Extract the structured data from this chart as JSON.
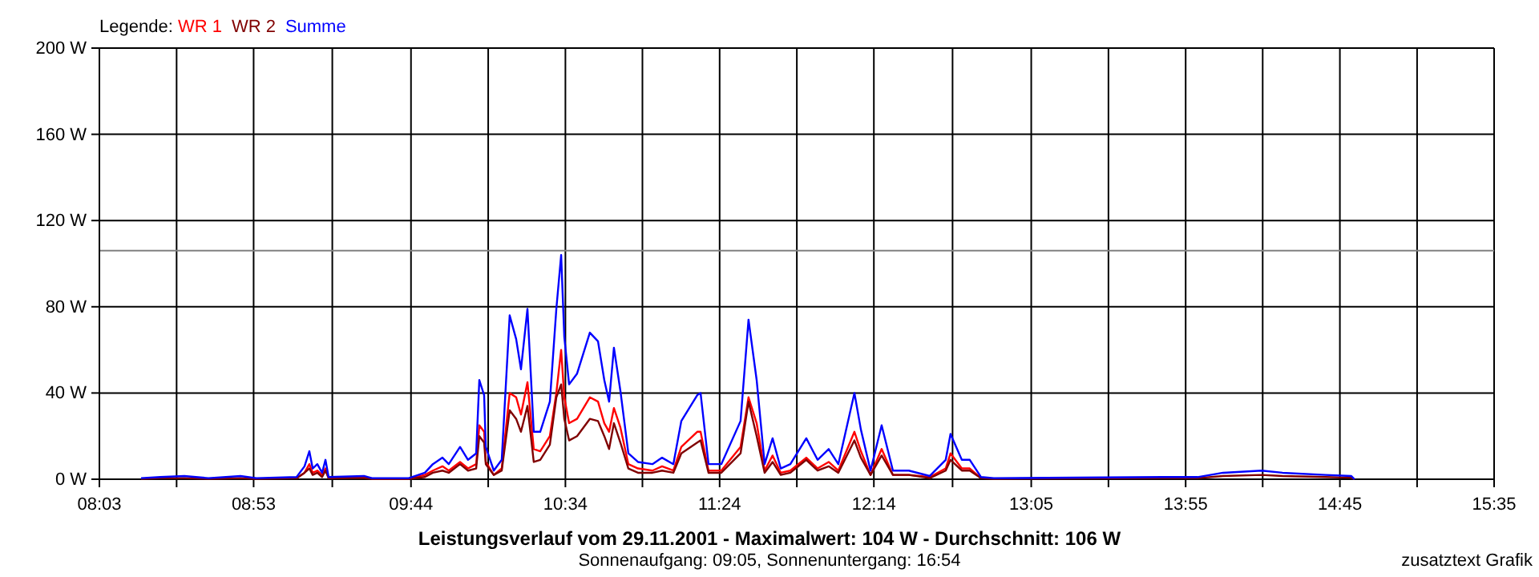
{
  "chart_data": {
    "type": "line",
    "title": "Leistungsverlauf vom 29.11.2001 - Maximalwert: 104 W - Durchschnitt: 106 W",
    "subtitle": "Sonnenaufgang: 09:05, Sonnenuntergang: 16:54",
    "legend_title": "Legende:",
    "legend": "top left",
    "grid": true,
    "marker": "none",
    "line_style": "solid",
    "annotations": [
      "zusatztext Grafik"
    ],
    "xlim": [
      8.05,
      15.583
    ],
    "ylim": [
      0,
      200
    ],
    "xticks": [
      {
        "value": 8.05,
        "label": "08:03"
      },
      {
        "value": 8.467,
        "label": null
      },
      {
        "value": 8.883,
        "label": "08:53"
      },
      {
        "value": 9.308,
        "label": null
      },
      {
        "value": 9.733,
        "label": "09:44"
      },
      {
        "value": 10.15,
        "label": null
      },
      {
        "value": 10.567,
        "label": "10:34"
      },
      {
        "value": 10.983,
        "label": null
      },
      {
        "value": 11.4,
        "label": "11:24"
      },
      {
        "value": 11.817,
        "label": null
      },
      {
        "value": 12.233,
        "label": "12:14"
      },
      {
        "value": 12.658,
        "label": null
      },
      {
        "value": 13.083,
        "label": "13:05"
      },
      {
        "value": 13.5,
        "label": null
      },
      {
        "value": 13.917,
        "label": "13:55"
      },
      {
        "value": 14.333,
        "label": null
      },
      {
        "value": 14.75,
        "label": "14:45"
      },
      {
        "value": 15.167,
        "label": null
      },
      {
        "value": 15.583,
        "label": "15:35"
      }
    ],
    "yticks": [
      {
        "value": 0,
        "label": "0 W"
      },
      {
        "value": 40,
        "label": "40 W"
      },
      {
        "value": 80,
        "label": "80 W"
      },
      {
        "value": 120,
        "label": "120 W"
      },
      {
        "value": 160,
        "label": "160 W"
      },
      {
        "value": 200,
        "label": "200 W"
      }
    ],
    "ref_lines": [
      {
        "axis": "y",
        "value": 106,
        "color": "#808080"
      }
    ],
    "x": [
      8.275,
      8.379,
      8.509,
      8.639,
      8.812,
      8.898,
      9.115,
      9.158,
      9.184,
      9.202,
      9.227,
      9.253,
      9.271,
      9.288,
      9.479,
      9.522,
      9.721,
      9.808,
      9.851,
      9.903,
      9.937,
      9.998,
      10.041,
      10.085,
      10.102,
      10.128,
      10.137,
      10.18,
      10.223,
      10.266,
      10.301,
      10.327,
      10.362,
      10.396,
      10.431,
      10.483,
      10.518,
      10.544,
      10.561,
      10.587,
      10.63,
      10.699,
      10.743,
      10.777,
      10.803,
      10.829,
      10.864,
      10.907,
      10.959,
      11.037,
      11.089,
      11.15,
      11.193,
      11.279,
      11.297,
      11.34,
      11.409,
      11.513,
      11.556,
      11.6,
      11.643,
      11.686,
      11.73,
      11.782,
      11.868,
      11.929,
      11.989,
      12.041,
      12.128,
      12.163,
      12.215,
      12.275,
      12.336,
      12.422,
      12.535,
      12.621,
      12.647,
      12.708,
      12.751,
      12.812,
      12.881,
      13.79,
      13.981,
      14.119,
      14.327,
      14.44,
      14.673,
      14.812,
      14.829
    ],
    "series": [
      {
        "name": "WR 1",
        "color": "#ff0000",
        "values": [
          null,
          null,
          null,
          null,
          null,
          null,
          0.5,
          3,
          7,
          3,
          4,
          2,
          5,
          0.5,
          1,
          0.3,
          0.3,
          2,
          4,
          6,
          4,
          8,
          5,
          7,
          25,
          22,
          8,
          2,
          5,
          40,
          38,
          30,
          45,
          14,
          13,
          20,
          40,
          60,
          38,
          26,
          28,
          38,
          36,
          26,
          22,
          33,
          24,
          7,
          5,
          4,
          6,
          4,
          15,
          22,
          22,
          4,
          4,
          15,
          38,
          26,
          4,
          11,
          3,
          4,
          10,
          5,
          8,
          4,
          22,
          13,
          2,
          14,
          2,
          2,
          1,
          5,
          12,
          5,
          5,
          0.5,
          null,
          null,
          null,
          null,
          null,
          null,
          null,
          null,
          null
        ]
      },
      {
        "name": "WR 2",
        "color": "#800000",
        "values": [
          0.2,
          0.5,
          0.5,
          0.2,
          0.5,
          0.2,
          0.5,
          3,
          5,
          2,
          3,
          1,
          4,
          0.5,
          0.5,
          0.2,
          0.2,
          1,
          3,
          4,
          3,
          7,
          4,
          5,
          20,
          17,
          7,
          2,
          4,
          32,
          28,
          22,
          34,
          8,
          9,
          16,
          38,
          44,
          28,
          18,
          20,
          28,
          27,
          20,
          14,
          26,
          17,
          5,
          3,
          3,
          4,
          3,
          12,
          17,
          18,
          3,
          3,
          12,
          36,
          20,
          3,
          8,
          2,
          3,
          9,
          4,
          6,
          3,
          18,
          10,
          2,
          11,
          2,
          2,
          0.5,
          4,
          9,
          4,
          4,
          0.5,
          0.2,
          0.5,
          0.5,
          1.5,
          2,
          1.5,
          1,
          0.7,
          0
        ]
      },
      {
        "name": "Summe",
        "color": "#0000ff",
        "values": [
          0.5,
          1,
          1.5,
          0.5,
          1.5,
          0.5,
          1,
          6,
          13,
          5,
          7,
          3,
          9,
          1,
          1.5,
          0.5,
          0.5,
          3,
          7,
          10,
          7,
          15,
          9,
          12,
          46,
          39,
          15,
          4,
          9,
          76,
          65,
          51,
          79,
          22,
          22,
          36,
          79,
          104,
          66,
          44,
          49,
          68,
          64,
          46,
          36,
          61,
          41,
          12,
          8,
          7,
          10,
          7,
          27,
          39,
          40,
          7,
          7,
          27,
          74,
          46,
          7,
          19,
          5,
          7,
          19,
          9,
          14,
          7,
          40,
          23,
          4,
          25,
          4,
          4,
          1.5,
          9,
          21,
          9,
          9,
          1,
          0.5,
          1,
          1,
          3,
          4,
          3,
          2,
          1.5,
          0
        ]
      }
    ]
  }
}
